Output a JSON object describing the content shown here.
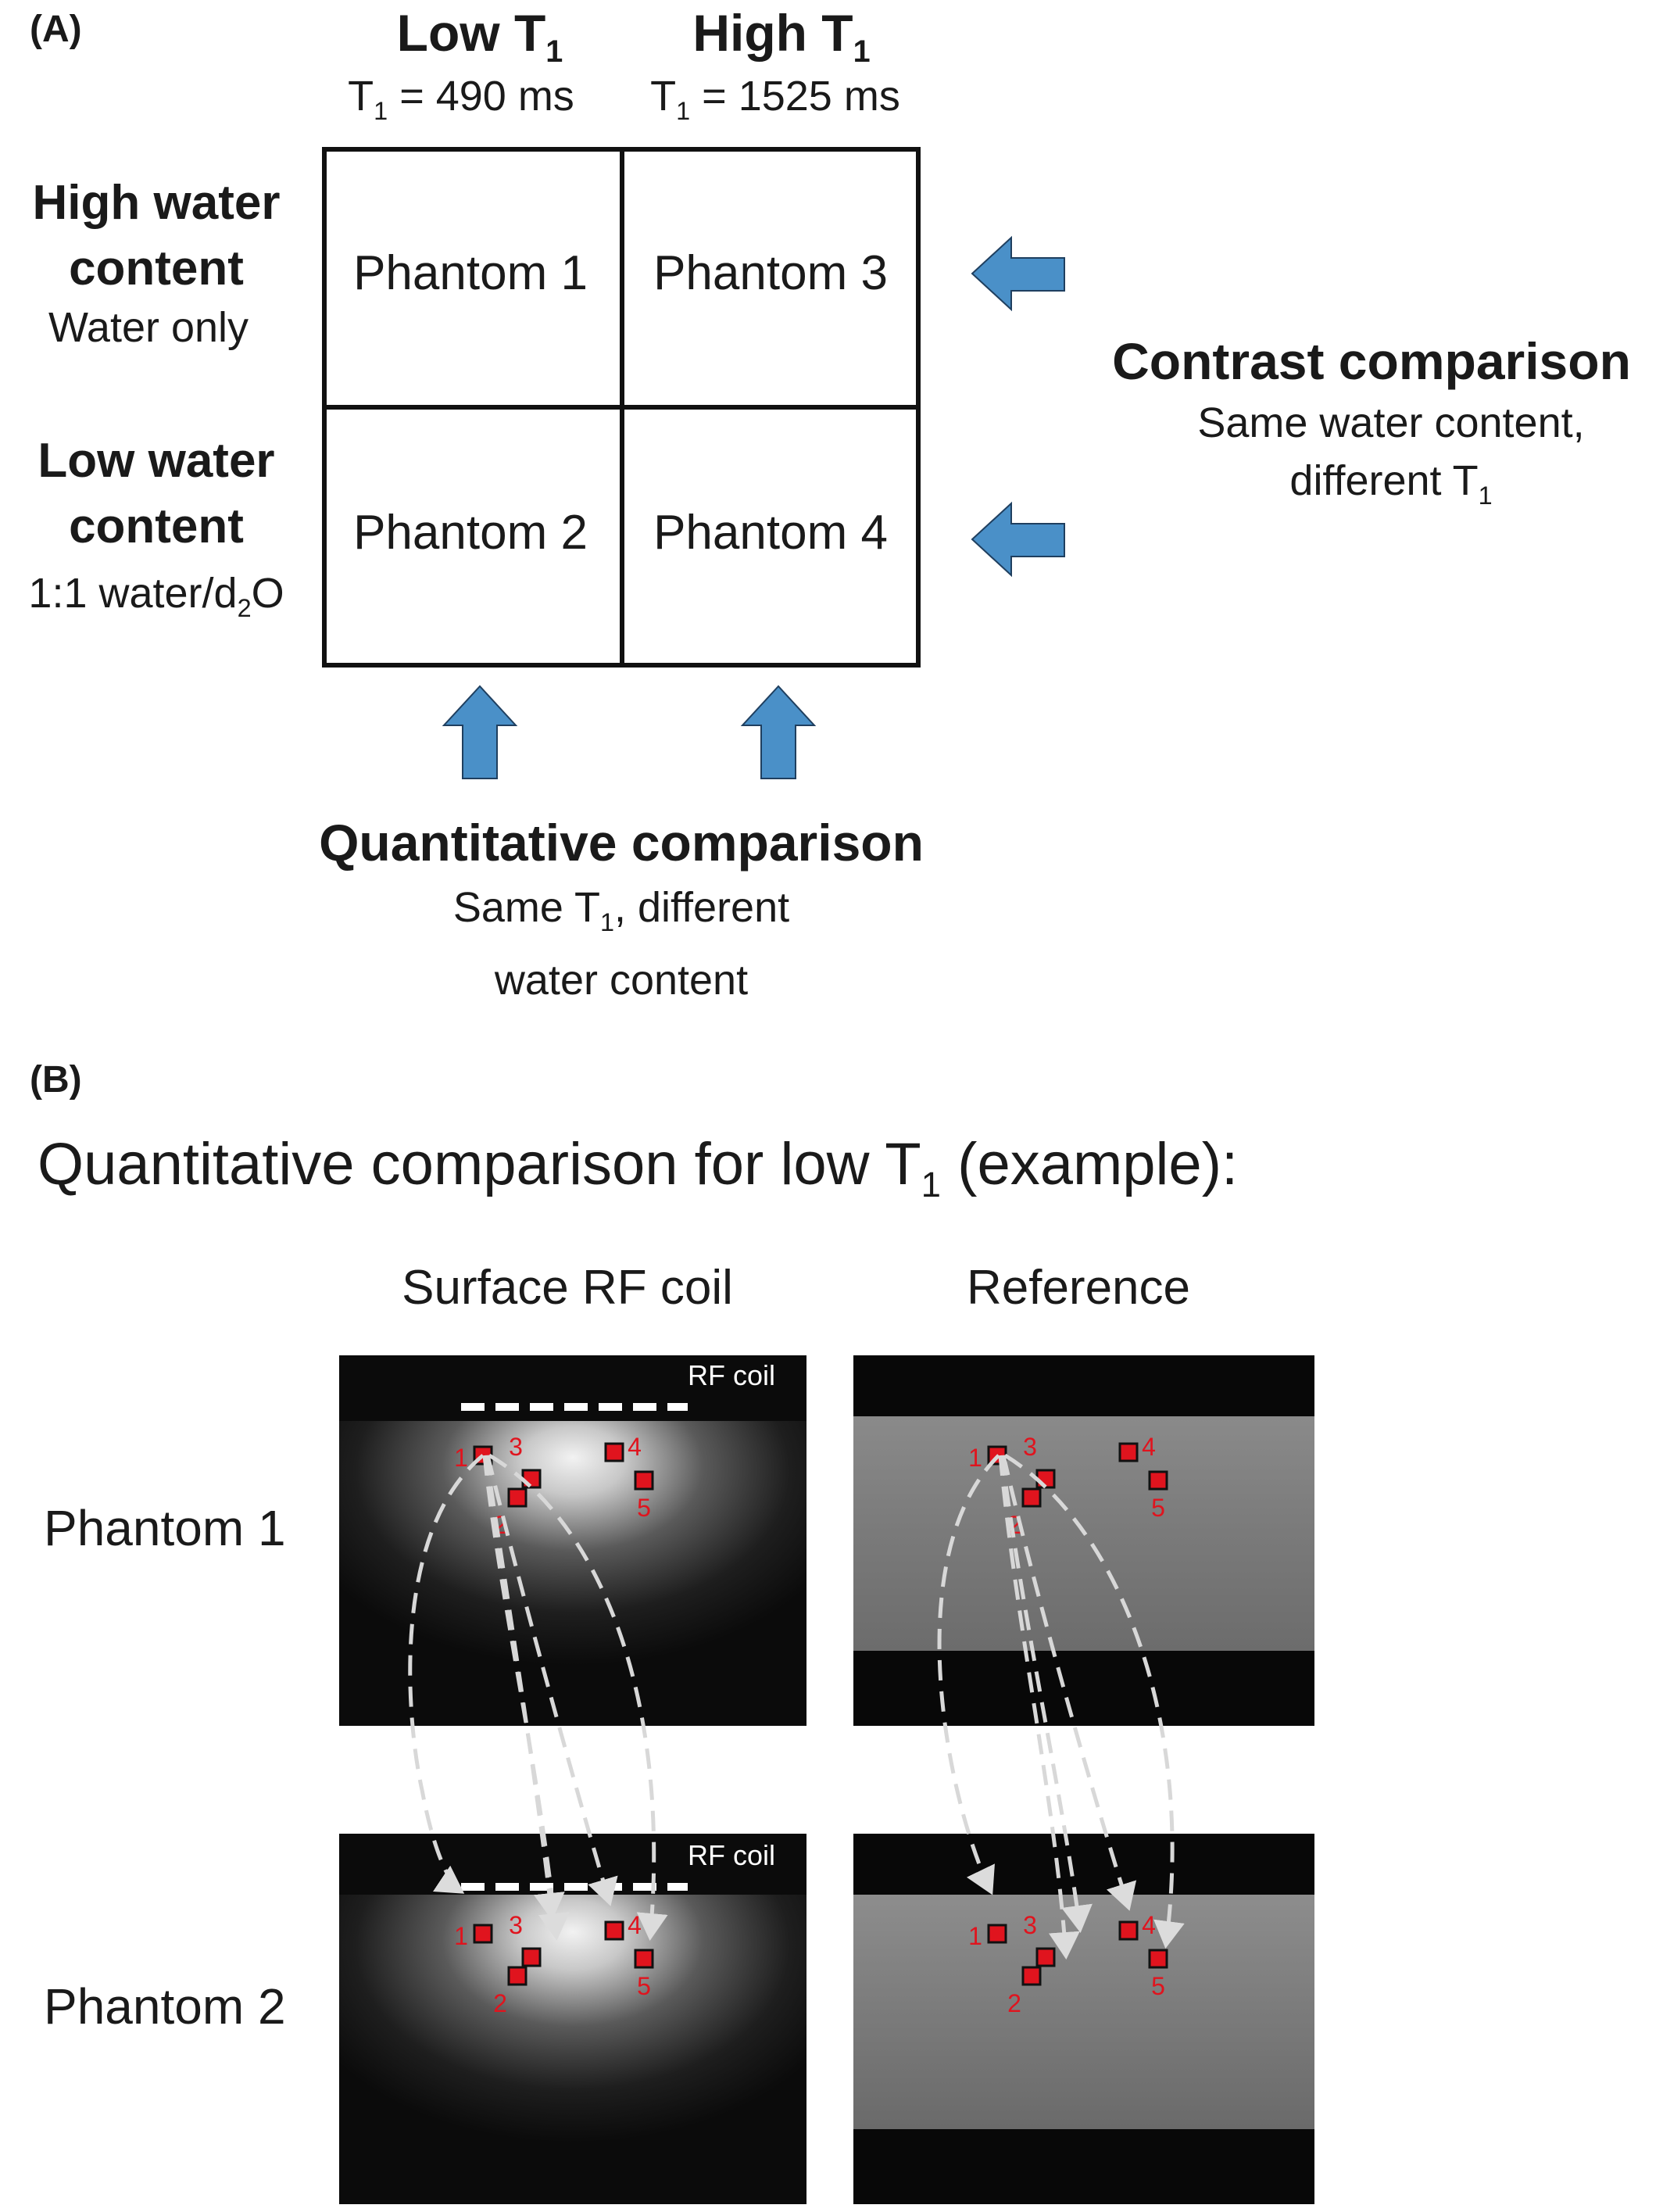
{
  "panel_a": {
    "label": "(A)",
    "columns": [
      {
        "title": "Low T",
        "title_sub": "1",
        "detail_pre": "T",
        "detail_sub": "1",
        "detail_post": " = 490 ms"
      },
      {
        "title": "High T",
        "title_sub": "1",
        "detail_pre": "T",
        "detail_sub": "1",
        "detail_post": " = 1525 ms"
      }
    ],
    "rows": [
      {
        "line1": "High water",
        "line2": "content",
        "detail": "Water only"
      },
      {
        "line1": "Low water",
        "line2": "content",
        "detail_pre": "1:1 water/d",
        "detail_sub": "2",
        "detail_post": "O"
      }
    ],
    "cells": [
      "Phantom 1",
      "Phantom 3",
      "Phantom 2",
      "Phantom 4"
    ],
    "contrast": {
      "title": "Contrast comparison",
      "line1": "Same water content,",
      "line2_pre": "different T",
      "line2_sub": "1"
    },
    "quantitative": {
      "title": "Quantitative comparison",
      "line1_pre": "Same T",
      "line1_sub": "1",
      "line1_post": ", different",
      "line2": "water content"
    },
    "arrow_color": "#4a90c8"
  },
  "panel_b": {
    "label": "(B)",
    "title_pre": "Quantitative comparison for low T",
    "title_sub": "1",
    "title_post": " (example):",
    "column_titles": [
      "Surface RF coil",
      "Reference"
    ],
    "row_labels": [
      "Phantom 1",
      "Phantom 2"
    ],
    "coil_label": "RF coil",
    "roi_labels": [
      "1",
      "2",
      "3",
      "4",
      "5"
    ],
    "roi_color": "#e0141e"
  }
}
